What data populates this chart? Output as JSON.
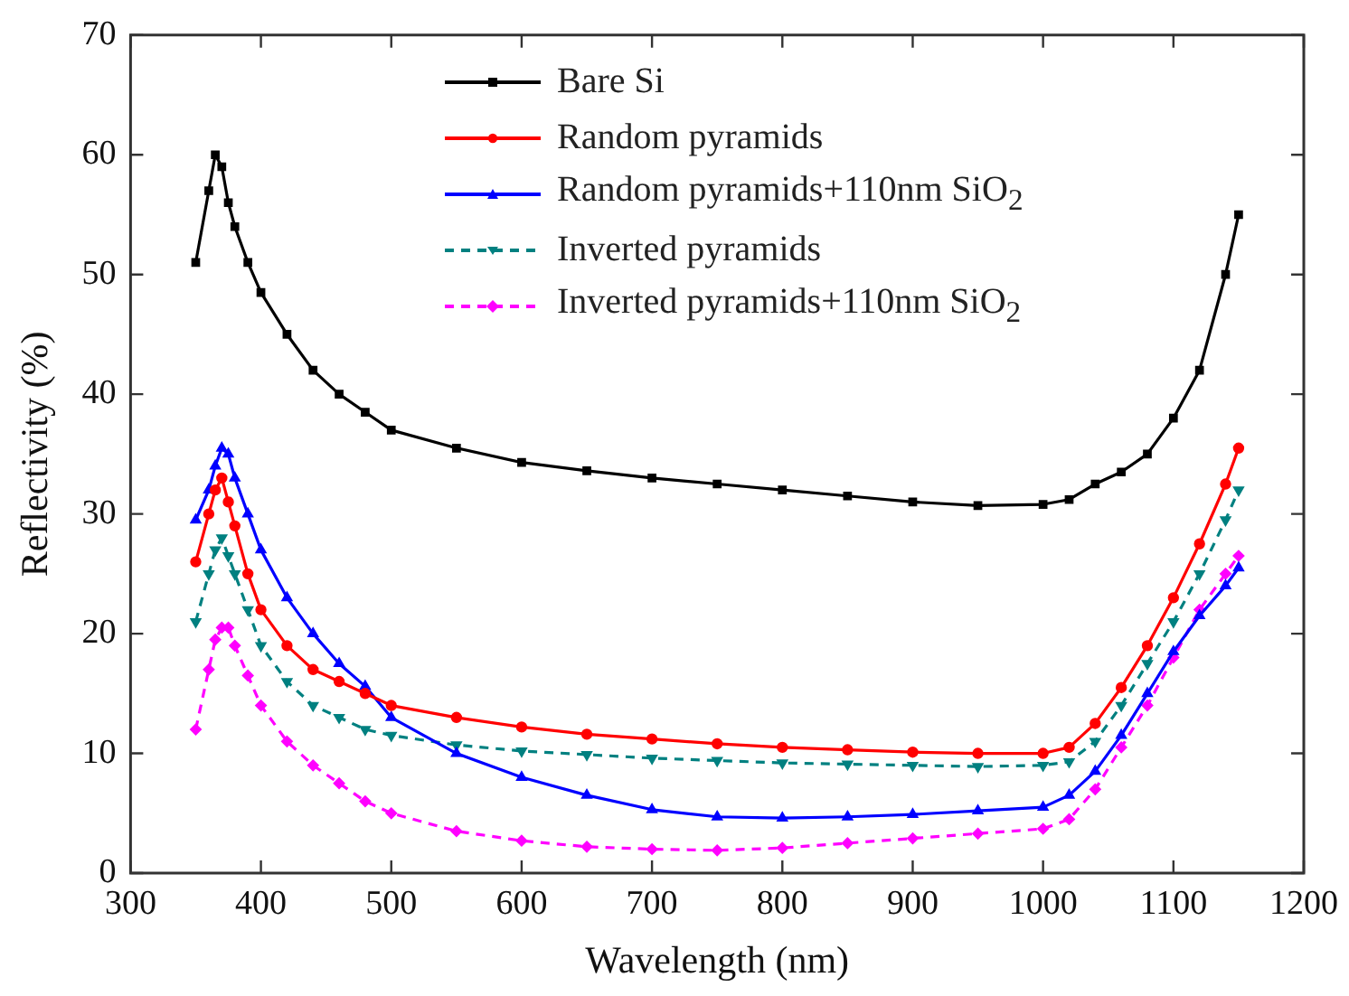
{
  "chart_data": {
    "type": "line",
    "xlabel": "Wavelength (nm)",
    "ylabel": "Reflectivity (%)",
    "xlim": [
      300,
      1200
    ],
    "xticks": [
      300,
      400,
      500,
      600,
      700,
      800,
      900,
      1000,
      1100,
      1200
    ],
    "ylim": [
      0,
      70
    ],
    "yticks": [
      0,
      10,
      20,
      30,
      40,
      50,
      60,
      70
    ],
    "grid": false,
    "legend": "top",
    "x": [
      350,
      360,
      365,
      370,
      375,
      380,
      390,
      400,
      420,
      440,
      460,
      480,
      500,
      550,
      600,
      650,
      700,
      750,
      800,
      850,
      900,
      950,
      1000,
      1020,
      1040,
      1060,
      1080,
      1100,
      1120,
      1140,
      1150
    ],
    "series": [
      {
        "name": "Bare Si",
        "color": "#000000",
        "marker": "square",
        "line_style": "solid",
        "values": [
          51,
          57,
          60,
          59,
          56,
          54,
          51,
          48.5,
          45,
          42,
          40,
          38.5,
          37,
          35.5,
          34.3,
          33.6,
          33,
          32.5,
          32,
          31.5,
          31,
          30.7,
          30.8,
          31.2,
          32.5,
          33.5,
          35,
          38,
          42,
          50,
          55
        ]
      },
      {
        "name": "Random pyramids",
        "color": "#ff0000",
        "marker": "circle",
        "line_style": "solid",
        "values": [
          26,
          30,
          32,
          33,
          31,
          29,
          25,
          22,
          19,
          17,
          16,
          15,
          14,
          13,
          12.2,
          11.6,
          11.2,
          10.8,
          10.5,
          10.3,
          10.1,
          10,
          10,
          10.5,
          12.5,
          15.5,
          19,
          23,
          27.5,
          32.5,
          35.5
        ]
      },
      {
        "name": "Random pyramids+110nm SiO$_{2}$",
        "color": "#0000ff",
        "marker": "triangle",
        "line_style": "solid",
        "values": [
          29.5,
          32,
          34,
          35.5,
          35,
          33,
          30,
          27,
          23,
          20,
          17.5,
          15.6,
          13,
          10,
          8,
          6.5,
          5.3,
          4.7,
          4.6,
          4.7,
          4.9,
          5.2,
          5.5,
          6.5,
          8.5,
          11.5,
          15,
          18.5,
          21.5,
          24,
          25.5
        ]
      },
      {
        "name": "Inverted pyramids",
        "color": "#008080",
        "marker": "triangle",
        "line_style": "dashed",
        "values": [
          21,
          25,
          27,
          28,
          26.5,
          25,
          22,
          19,
          16,
          14,
          13,
          12,
          11.5,
          10.7,
          10.2,
          9.9,
          9.6,
          9.4,
          9.2,
          9.1,
          9,
          8.9,
          9,
          9.3,
          11,
          14,
          17.5,
          21,
          25,
          29.5,
          32
        ]
      },
      {
        "name": "Inverted pyramids+110nm SiO$_{2}$",
        "color": "#ff00ff",
        "marker": "diamond",
        "line_style": "dashed",
        "values": [
          12,
          17,
          19.5,
          20.5,
          20.5,
          19,
          16.5,
          14,
          11,
          9,
          7.5,
          6,
          5,
          3.5,
          2.7,
          2.2,
          2,
          1.9,
          2.1,
          2.5,
          2.9,
          3.3,
          3.7,
          4.5,
          7,
          10.5,
          14,
          18,
          22,
          25,
          26.5
        ]
      }
    ]
  }
}
